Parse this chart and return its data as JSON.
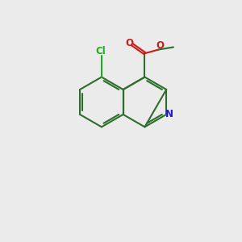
{
  "bg_color": "#ebebeb",
  "bond_color": "#2d6e2d",
  "bond_width": 1.5,
  "double_sep": 0.08,
  "atom_colors": {
    "N": "#1a1acc",
    "O": "#cc1a1a",
    "Cl": "#22aa22",
    "C": "#2d6e2d"
  },
  "font_size": 8.5,
  "figsize": [
    3.0,
    3.0
  ],
  "dpi": 100
}
